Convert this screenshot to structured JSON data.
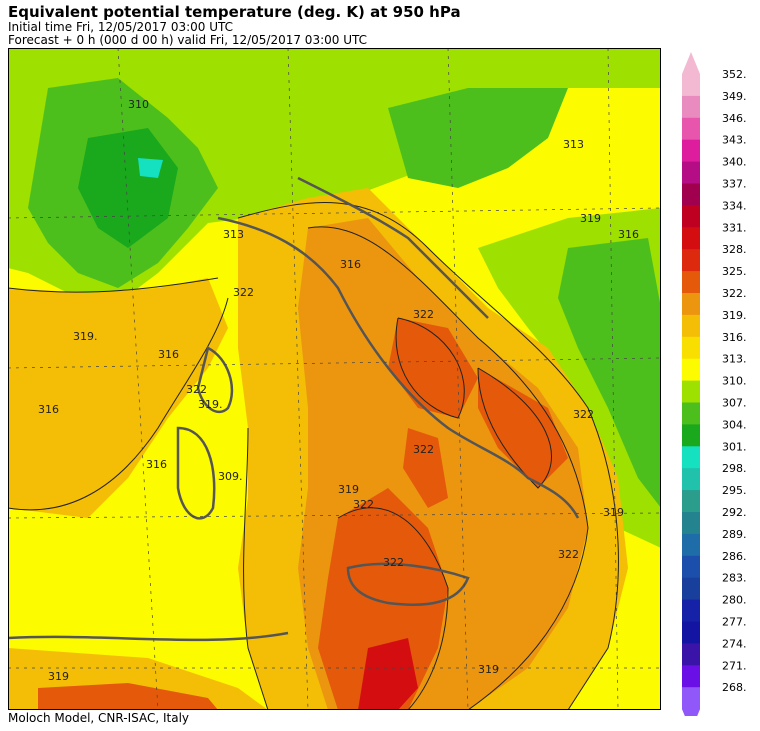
{
  "header": {
    "title": "Equivalent potential temperature (deg. K) at 950 hPa",
    "initial_time": "Initial time  Fri, 12/05/2017  03:00 UTC",
    "forecast": "Forecast  +   0 h  (000 d 00 h)  valid Fri, 12/05/2017  03:00 UTC"
  },
  "footer": {
    "credit": "Moloch Model, CNR-ISAC, Italy"
  },
  "colorbar": {
    "levels": [
      "352.",
      "349.",
      "346.",
      "343.",
      "340.",
      "337.",
      "334.",
      "331.",
      "328.",
      "325.",
      "322.",
      "319.",
      "316.",
      "313.",
      "310.",
      "307.",
      "304.",
      "301.",
      "298.",
      "295.",
      "292.",
      "289.",
      "286.",
      "283.",
      "280.",
      "277.",
      "274.",
      "271.",
      "268."
    ],
    "colors": [
      "#f3b9d2",
      "#ea8bc0",
      "#e755ad",
      "#de1d9e",
      "#b50d85",
      "#a1004f",
      "#c00020",
      "#d40e10",
      "#dd2a0e",
      "#e45a0a",
      "#ec9610",
      "#f4be06",
      "#f9df00",
      "#fdfb00",
      "#9ee000",
      "#4dbf1c",
      "#1aa81c",
      "#15e0c0",
      "#21c2ac",
      "#2a9d8c",
      "#23848f",
      "#1f6da8",
      "#1c4fac",
      "#183f9c",
      "#1522a8",
      "#1414a2",
      "#3a14a8",
      "#6a10e6",
      "#9058f8"
    ]
  },
  "map": {
    "contour_labels": [
      "310",
      "313",
      "313",
      "319",
      "316",
      "319.",
      "316",
      "322",
      "316",
      "322",
      "322",
      "319.",
      "316",
      "309.",
      "316",
      "319",
      "322",
      "322",
      "322",
      "322",
      "319",
      "319",
      "322",
      "319"
    ]
  }
}
